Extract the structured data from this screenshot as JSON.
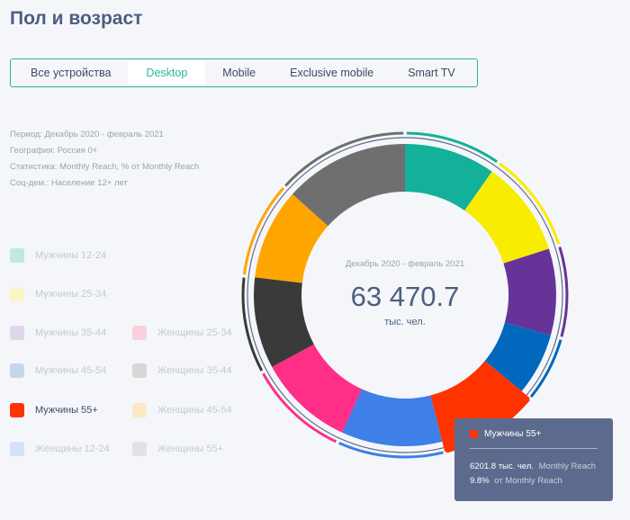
{
  "page": {
    "title": "Пол и возраст"
  },
  "tabs": [
    {
      "label": "Все устройства",
      "active": false
    },
    {
      "label": "Desktop",
      "active": true
    },
    {
      "label": "Mobile",
      "active": false
    },
    {
      "label": "Exclusive mobile",
      "active": false
    },
    {
      "label": "Smart TV",
      "active": false
    }
  ],
  "meta": {
    "period": "Период: Декабрь 2020 - февраль 2021",
    "geo": "География: Россия 0+",
    "stat": "Статистика: Monthly Reach, % от Monthly Reach",
    "socdem": "Соц-дем.: Население 12+ лет"
  },
  "legend": [
    {
      "label": "Мужчины 12-24",
      "color": "#bfe9df",
      "active": false
    },
    {
      "label": "Мужчины 25-34",
      "color": "#fbf5c4",
      "active": false
    },
    {
      "label": "Мужчины 35-44",
      "color": "#e0d6e9",
      "active": false
    },
    {
      "label": "Мужчины 45-54",
      "color": "#c6d7ec",
      "active": false
    },
    {
      "label": "Мужчины 55+",
      "color": "#ff3300",
      "active": true
    },
    {
      "label": "Женщины 12-24",
      "color": "#d5e1f8",
      "active": false
    },
    {
      "label": "Женщины 25-34",
      "color": "#fad0df",
      "active": false
    },
    {
      "label": "Женщины 35-44",
      "color": "#d7d7d7",
      "active": false
    },
    {
      "label": "Женщины 45-54",
      "color": "#fbe9c4",
      "active": false
    },
    {
      "label": "Женщины 55+",
      "color": "#e2e2e2",
      "active": false
    }
  ],
  "chart_data": {
    "type": "pie",
    "center_period": "Декабрь 2020 - февраль 2021",
    "center_value": "63 470.7",
    "center_unit": "тыс. чел.",
    "segments": [
      {
        "name": "Мужчины 12-24",
        "value": 9.5,
        "color": "#13b09a"
      },
      {
        "name": "Мужчины 25-34",
        "value": 10.0,
        "color": "#f8ec00"
      },
      {
        "name": "Мужчины 35-44",
        "value": 9.0,
        "color": "#663399"
      },
      {
        "name": "Мужчины 45-54",
        "value": 6.5,
        "color": "#0068bd"
      },
      {
        "name": "Мужчины 55+",
        "value": 9.8,
        "color": "#ff3300"
      },
      {
        "name": "Женщины 12-24",
        "value": 10.5,
        "color": "#3e7fe8"
      },
      {
        "name": "Женщины 25-34",
        "value": 10.0,
        "color": "#ff2f88"
      },
      {
        "name": "Женщины 35-44",
        "value": 9.5,
        "color": "#3a3a3a"
      },
      {
        "name": "Женщины 45-54",
        "value": 9.5,
        "color": "#ffa500"
      },
      {
        "name": "Женщины 55+",
        "value": 13.0,
        "color": "#6f6f6f"
      }
    ],
    "outer_groups": [
      {
        "name": "Мужчины",
        "segments": [
          0,
          1,
          2,
          3,
          4
        ]
      },
      {
        "name": "Женщины",
        "segments": [
          5,
          6,
          7,
          8,
          9
        ]
      }
    ],
    "tooltip": {
      "name": "Мужчины 55+",
      "value": "6201.8 тыс. чел.",
      "value_label": "Monthly Reach",
      "share": "9.8%",
      "share_label": "от Monthly Reach"
    }
  }
}
